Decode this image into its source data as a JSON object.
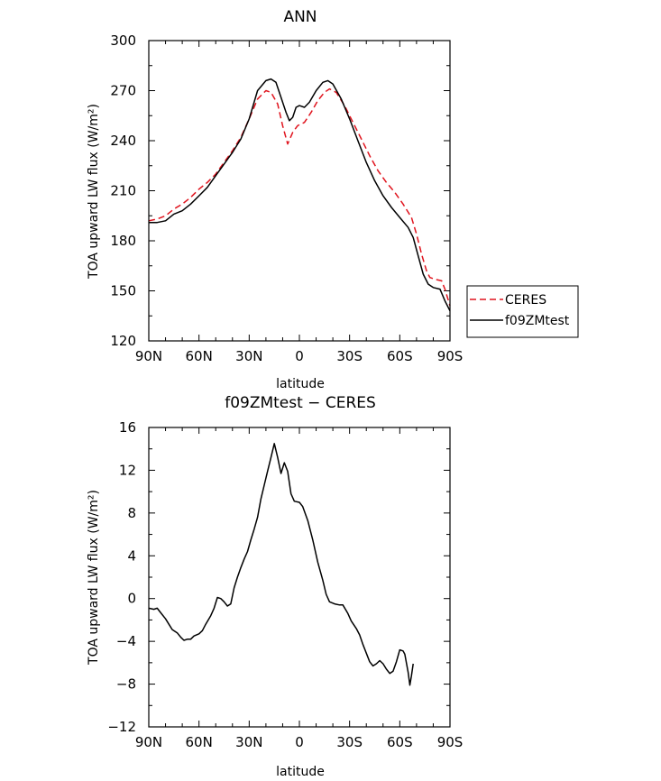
{
  "chart_data": [
    {
      "type": "line",
      "title": "ANN",
      "xlabel": "latitude",
      "ylabel": "TOA upward LW flux (W/m²)",
      "xlim": [
        90,
        -90
      ],
      "ylim": [
        120,
        300
      ],
      "xticks": [
        90,
        60,
        30,
        0,
        -30,
        -60,
        -90
      ],
      "xtick_labels": [
        "90N",
        "60N",
        "30N",
        "0",
        "30S",
        "60S",
        "90S"
      ],
      "yticks": [
        120,
        150,
        180,
        210,
        240,
        270,
        300
      ],
      "ytick_labels": [
        "120",
        "150",
        "180",
        "210",
        "240",
        "270",
        "300"
      ],
      "grid": false,
      "legend": {
        "position": "right",
        "entries": [
          "CERES",
          "f09ZMtest"
        ]
      },
      "series": [
        {
          "name": "CERES",
          "color": "#e0141e",
          "dash": "dashed",
          "points": [
            [
              90,
              192
            ],
            [
              85,
              193
            ],
            [
              80,
              195
            ],
            [
              75,
              199
            ],
            [
              70,
              202
            ],
            [
              65,
              206
            ],
            [
              60,
              211
            ],
            [
              55,
              215
            ],
            [
              50,
              220
            ],
            [
              45,
              227
            ],
            [
              40,
              234
            ],
            [
              35,
              242
            ],
            [
              30,
              253
            ],
            [
              25,
              265
            ],
            [
              20,
              270
            ],
            [
              17,
              269
            ],
            [
              13,
              262
            ],
            [
              10,
              249
            ],
            [
              7,
              238
            ],
            [
              4,
              245
            ],
            [
              1,
              249
            ],
            [
              -3,
              251
            ],
            [
              -7,
              257
            ],
            [
              -11,
              264
            ],
            [
              -15,
              269
            ],
            [
              -18,
              271
            ],
            [
              -22,
              269
            ],
            [
              -27,
              261
            ],
            [
              -32,
              251
            ],
            [
              -37,
              241
            ],
            [
              -42,
              231
            ],
            [
              -47,
              222
            ],
            [
              -52,
              215
            ],
            [
              -57,
              209
            ],
            [
              -62,
              202
            ],
            [
              -67,
              194
            ],
            [
              -70,
              184
            ],
            [
              -73,
              172
            ],
            [
              -76,
              162
            ],
            [
              -78,
              158
            ],
            [
              -81,
              157
            ],
            [
              -85,
              156
            ],
            [
              -87,
              151
            ],
            [
              -90,
              141
            ]
          ]
        },
        {
          "name": "f09ZMtest",
          "color": "#000000",
          "dash": "solid",
          "points": [
            [
              90,
              191
            ],
            [
              85,
              191
            ],
            [
              80,
              192
            ],
            [
              75,
              196
            ],
            [
              70,
              198
            ],
            [
              65,
              202
            ],
            [
              60,
              207
            ],
            [
              55,
              212
            ],
            [
              50,
              219
            ],
            [
              45,
              226
            ],
            [
              40,
              233
            ],
            [
              35,
              241
            ],
            [
              30,
              253
            ],
            [
              25,
              270
            ],
            [
              20,
              276
            ],
            [
              17,
              277
            ],
            [
              14,
              275
            ],
            [
              11,
              266
            ],
            [
              8,
              257
            ],
            [
              6,
              252
            ],
            [
              4,
              254
            ],
            [
              2,
              260
            ],
            [
              0,
              261
            ],
            [
              -3,
              260
            ],
            [
              -6,
              263
            ],
            [
              -10,
              270
            ],
            [
              -14,
              275
            ],
            [
              -17,
              276
            ],
            [
              -20,
              274
            ],
            [
              -25,
              265
            ],
            [
              -30,
              253
            ],
            [
              -35,
              240
            ],
            [
              -40,
              227
            ],
            [
              -45,
              216
            ],
            [
              -50,
              207
            ],
            [
              -55,
              200
            ],
            [
              -60,
              194
            ],
            [
              -65,
              188
            ],
            [
              -68,
              182
            ],
            [
              -71,
              171
            ],
            [
              -74,
              160
            ],
            [
              -77,
              154
            ],
            [
              -80,
              152
            ],
            [
              -84,
              151
            ],
            [
              -87,
              144
            ],
            [
              -90,
              138
            ]
          ]
        }
      ]
    },
    {
      "type": "line",
      "title": "f09ZMtest − CERES",
      "xlabel": "latitude",
      "ylabel": "TOA upward LW flux (W/m²)",
      "xlim": [
        90,
        -90
      ],
      "ylim": [
        -12,
        16
      ],
      "xticks": [
        90,
        60,
        30,
        0,
        -30,
        -60,
        -90
      ],
      "xtick_labels": [
        "90N",
        "60N",
        "30N",
        "0",
        "30S",
        "60S",
        "90S"
      ],
      "yticks": [
        -12,
        -8,
        -4,
        0,
        4,
        8,
        12,
        16
      ],
      "ytick_labels": [
        "−12",
        "−8",
        "−4",
        "0",
        "4",
        "8",
        "12",
        "16"
      ],
      "grid": false,
      "series": [
        {
          "color": "#000000",
          "dash": "solid",
          "points": [
            [
              90,
              -0.9
            ],
            [
              87,
              -1.0
            ],
            [
              85,
              -0.9
            ],
            [
              83,
              -1.3
            ],
            [
              80,
              -1.9
            ],
            [
              78,
              -2.4
            ],
            [
              76,
              -2.9
            ],
            [
              73,
              -3.2
            ],
            [
              71,
              -3.6
            ],
            [
              69,
              -3.9
            ],
            [
              67,
              -3.8
            ],
            [
              65,
              -3.8
            ],
            [
              63,
              -3.5
            ],
            [
              60,
              -3.3
            ],
            [
              58,
              -3.0
            ],
            [
              56,
              -2.4
            ],
            [
              53,
              -1.6
            ],
            [
              51,
              -0.9
            ],
            [
              49,
              0.1
            ],
            [
              47,
              0.0
            ],
            [
              45,
              -0.3
            ],
            [
              43,
              -0.7
            ],
            [
              41,
              -0.5
            ],
            [
              39,
              1.0
            ],
            [
              37,
              2.0
            ],
            [
              35,
              2.9
            ],
            [
              33,
              3.7
            ],
            [
              31,
              4.4
            ],
            [
              29,
              5.5
            ],
            [
              27,
              6.5
            ],
            [
              25,
              7.6
            ],
            [
              23,
              9.3
            ],
            [
              21,
              10.6
            ],
            [
              19,
              11.9
            ],
            [
              17,
              13.2
            ],
            [
              15,
              14.5
            ],
            [
              13,
              13.2
            ],
            [
              11,
              11.7
            ],
            [
              9,
              12.7
            ],
            [
              7,
              11.9
            ],
            [
              5,
              9.8
            ],
            [
              3,
              9.1
            ],
            [
              0,
              9.0
            ],
            [
              -2,
              8.6
            ],
            [
              -5,
              7.3
            ],
            [
              -8,
              5.5
            ],
            [
              -11,
              3.4
            ],
            [
              -14,
              1.7
            ],
            [
              -16,
              0.4
            ],
            [
              -18,
              -0.3
            ],
            [
              -21,
              -0.5
            ],
            [
              -24,
              -0.6
            ],
            [
              -26,
              -0.6
            ],
            [
              -29,
              -1.4
            ],
            [
              -31,
              -2.1
            ],
            [
              -34,
              -2.8
            ],
            [
              -36,
              -3.4
            ],
            [
              -38,
              -4.3
            ],
            [
              -40,
              -5.1
            ],
            [
              -42,
              -5.9
            ],
            [
              -44,
              -6.3
            ],
            [
              -46,
              -6.1
            ],
            [
              -48,
              -5.8
            ],
            [
              -50,
              -6.1
            ],
            [
              -52,
              -6.6
            ],
            [
              -54,
              -7.0
            ],
            [
              -56,
              -6.8
            ],
            [
              -58,
              -5.9
            ],
            [
              -60,
              -4.8
            ],
            [
              -62,
              -4.9
            ],
            [
              -63,
              -5.2
            ],
            [
              -65,
              -6.9
            ],
            [
              -66,
              -8.1
            ],
            [
              -67,
              -7.2
            ],
            [
              -68,
              -6.1
            ]
          ]
        }
      ]
    }
  ]
}
